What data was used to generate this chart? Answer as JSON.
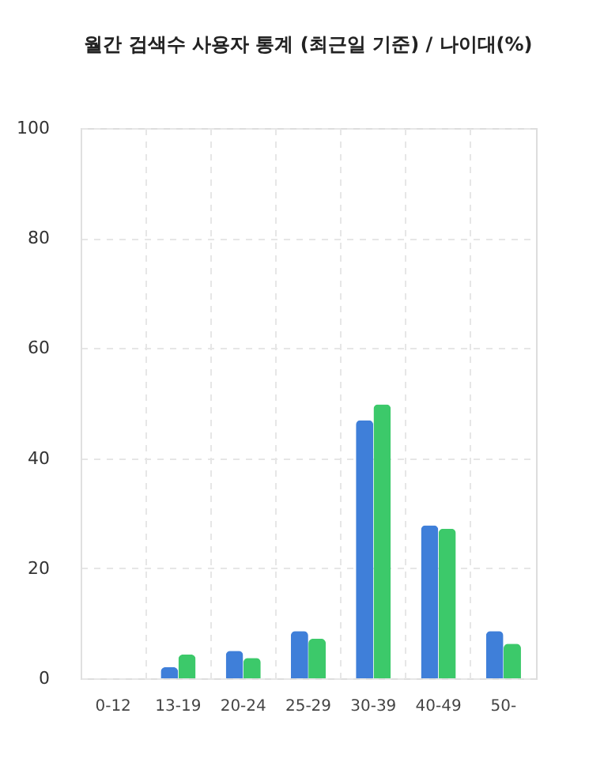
{
  "chart_data": {
    "type": "bar",
    "title": "월간 검색수 사용자 통계 (최근일 기준) / 나이대(%)",
    "categories": [
      "0-12",
      "13-19",
      "20-24",
      "25-29",
      "30-39",
      "40-49",
      "50-"
    ],
    "series": [
      {
        "color": "#3f7fd9",
        "values": [
          0,
          2.0,
          5.0,
          8.6,
          46.9,
          27.8,
          8.6
        ]
      },
      {
        "color": "#3cc96a",
        "values": [
          0,
          4.3,
          3.7,
          7.2,
          49.8,
          27.2,
          6.3
        ]
      }
    ],
    "ylim": [
      0,
      100
    ],
    "yticks": [
      0,
      20,
      40,
      60,
      80,
      100
    ],
    "grid": true,
    "legend": false
  }
}
